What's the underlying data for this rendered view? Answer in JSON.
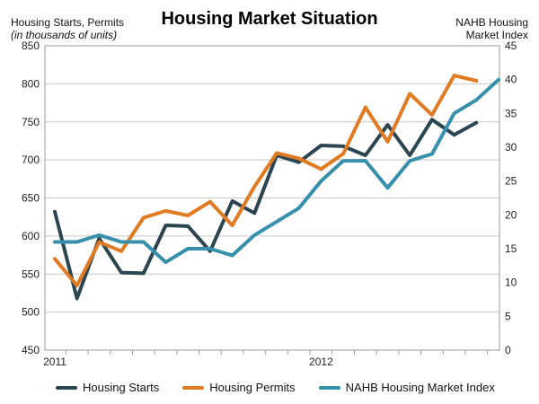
{
  "chart_data": {
    "type": "line",
    "title": "Housing Market Situation",
    "left_axis_label": [
      "Housing Starts, Permits",
      "(in thousands of units)"
    ],
    "right_axis_label": [
      "NAHB Housing",
      "Market Index"
    ],
    "left_ylim": [
      450,
      850
    ],
    "left_yticks": [
      450,
      500,
      550,
      600,
      650,
      700,
      750,
      800,
      850
    ],
    "right_ylim": [
      0,
      45
    ],
    "right_yticks": [
      0,
      5,
      10,
      15,
      20,
      25,
      30,
      35,
      40,
      45
    ],
    "x_labels": [
      {
        "label": "2011",
        "index": 0
      },
      {
        "label": "2012",
        "index": 12
      }
    ],
    "grid": "horizontal",
    "legend_position": "bottom",
    "colors": {
      "starts": "#2b4650",
      "permits": "#e07b24",
      "index": "#3790ab"
    },
    "series": [
      {
        "name": "Housing Starts",
        "axis": "left",
        "x": [
          0,
          1,
          2,
          3,
          4,
          5,
          6,
          7,
          8,
          9,
          10,
          11,
          12,
          13,
          14,
          15,
          16,
          17,
          18,
          19
        ],
        "values": [
          632,
          518,
          597,
          552,
          551,
          614,
          613,
          580,
          646,
          630,
          706,
          697,
          719,
          718,
          706,
          746,
          706,
          753,
          733,
          749
        ]
      },
      {
        "name": "Housing Permits",
        "axis": "left",
        "x": [
          0,
          1,
          2,
          3,
          4,
          5,
          6,
          7,
          8,
          9,
          10,
          11,
          12,
          13,
          14,
          15,
          16,
          17,
          18,
          19
        ],
        "values": [
          570,
          535,
          592,
          580,
          624,
          633,
          627,
          645,
          614,
          665,
          709,
          702,
          688,
          708,
          769,
          724,
          787,
          759,
          811,
          804
        ]
      },
      {
        "name": "NAHB Housing Market Index",
        "axis": "right",
        "x": [
          0,
          1,
          2,
          3,
          4,
          5,
          6,
          7,
          8,
          9,
          10,
          11,
          12,
          13,
          14,
          15,
          16,
          17,
          18,
          19,
          20
        ],
        "values": [
          16,
          16,
          17,
          16,
          16,
          13,
          15,
          15,
          14,
          17,
          19,
          21,
          25,
          28,
          28,
          24,
          28,
          29,
          35,
          37,
          40
        ]
      }
    ]
  }
}
